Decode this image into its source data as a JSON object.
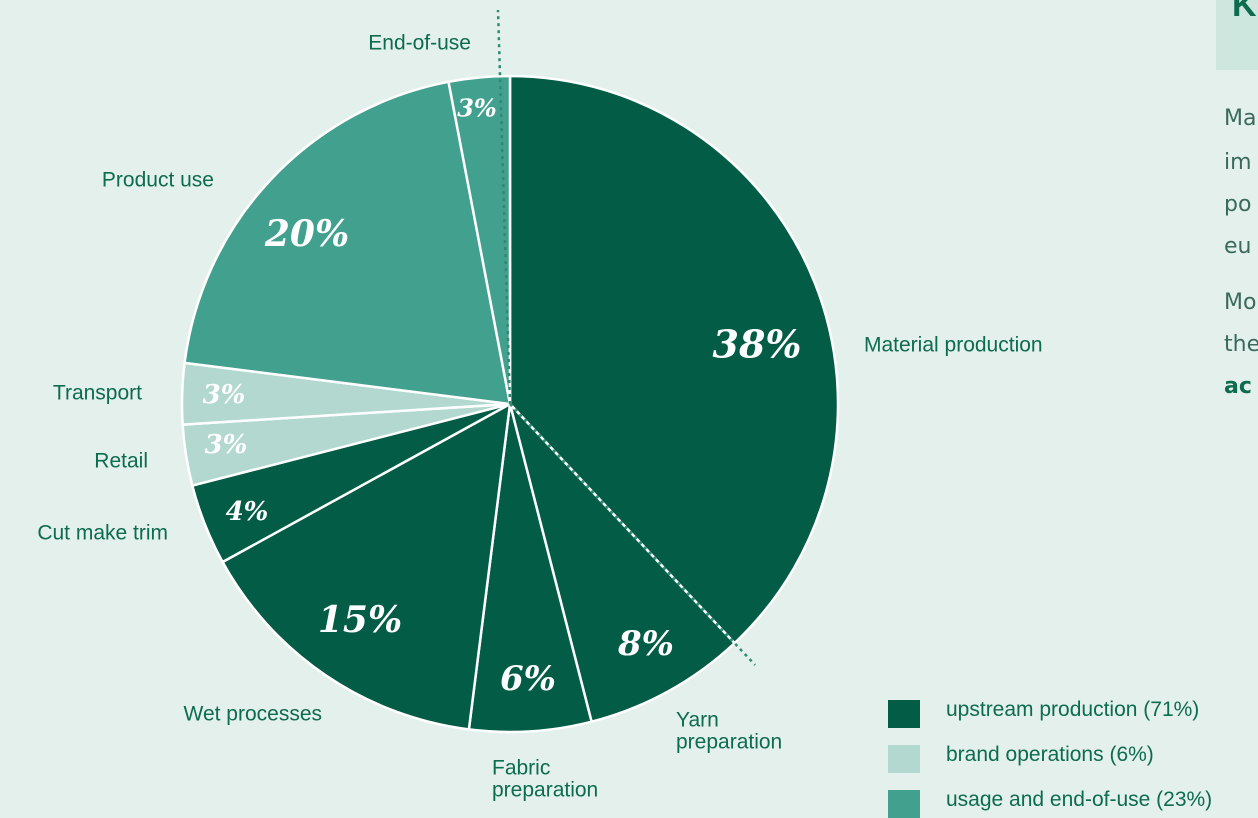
{
  "chart_data": {
    "type": "pie",
    "start_angle_deg": 0,
    "direction": "clockwise",
    "slices": [
      {
        "label": "Material production",
        "pct_label": "38%",
        "value": 38,
        "color": "#035c46"
      },
      {
        "label": "Yarn preparation",
        "pct_label": "8%",
        "value": 8,
        "color": "#035c46"
      },
      {
        "label": "Fabric preparation",
        "pct_label": "6%",
        "value": 6,
        "color": "#035c46"
      },
      {
        "label": "Wet processes",
        "pct_label": "15%",
        "value": 15,
        "color": "#035c46"
      },
      {
        "label": "Cut make trim",
        "pct_label": "4%",
        "value": 4,
        "color": "#035c46"
      },
      {
        "label": "Retail",
        "pct_label": "3%",
        "value": 3,
        "color": "#b2d8cf"
      },
      {
        "label": "Transport",
        "pct_label": "3%",
        "value": 3,
        "color": "#b2d8cf"
      },
      {
        "label": "Product use",
        "pct_label": "20%",
        "value": 20,
        "color": "#42a08f"
      },
      {
        "label": "End-of-use",
        "pct_label": "3%",
        "value": 3,
        "color": "#42a08f"
      }
    ],
    "legend": [
      {
        "label": "upstream production (71%)",
        "color": "#035c46"
      },
      {
        "label": "brand operations (6%)",
        "color": "#b2d8cf"
      },
      {
        "label": "usage and end-of-use (23%)",
        "color": "#42a08f"
      }
    ],
    "legend_position": "bottom-right"
  },
  "side_panel": {
    "title_glyph": "K",
    "text_fragments": [
      "Ma",
      "im",
      "po",
      "eu",
      "Mo",
      "the"
    ],
    "bold_fragment": "ac"
  }
}
